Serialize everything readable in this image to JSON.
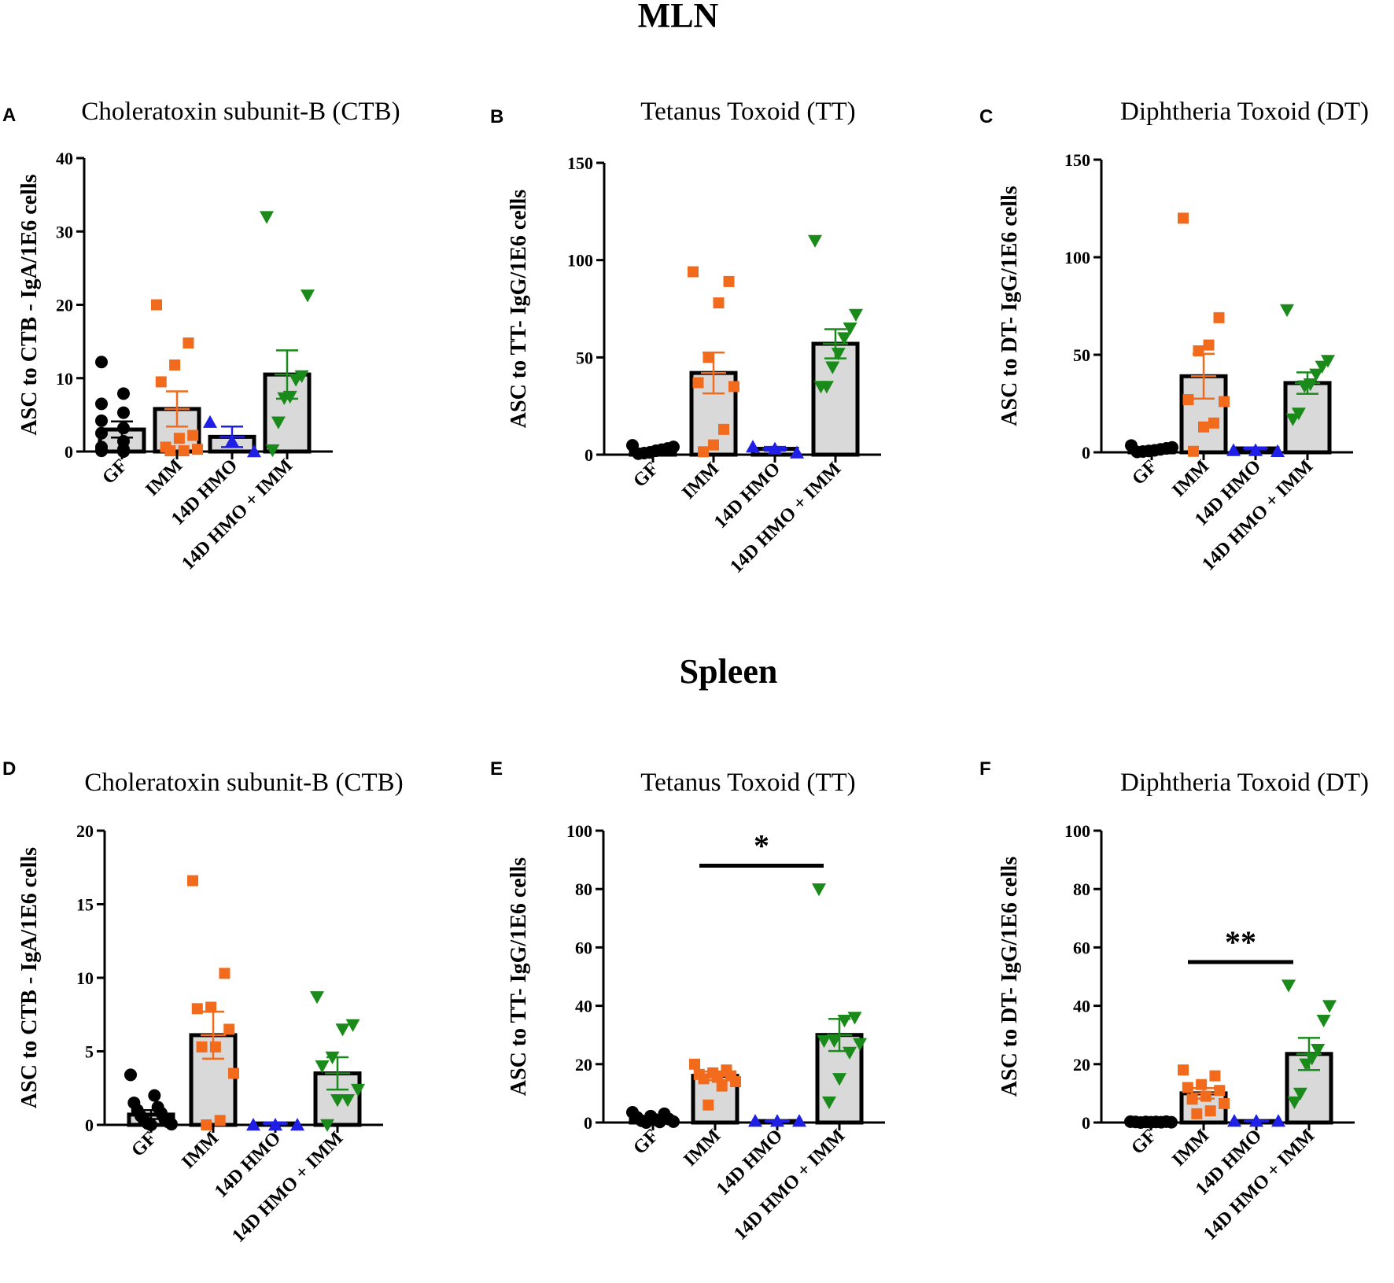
{
  "section_titles": {
    "top": "MLN",
    "bottom": "Spleen"
  },
  "colors": {
    "GF": "#000000",
    "IMM": "#f26b1d",
    "14D HMO": "#1f1fe6",
    "14D HMO + IMM": "#1a8a1a",
    "bar_fill": "#d9d9d9",
    "axis": "#000000"
  },
  "chart_data": [
    {
      "type": "bar",
      "panel": "A",
      "title": "Choleratoxin subunit-B  (CTB)",
      "ylabel": "ASC to CTB - IgA/1E6 cells",
      "xlabel": "",
      "ylim": [
        0,
        40
      ],
      "yticks": [
        0,
        10,
        20,
        30,
        40
      ],
      "categories": [
        "GF",
        "IMM",
        "14D HMO",
        "14D HMO + IMM"
      ],
      "means": [
        3.0,
        5.8,
        2.0,
        10.5
      ],
      "sem": [
        1.1,
        2.4,
        1.4,
        3.3
      ],
      "points": [
        [
          12.2,
          7.9,
          6.5,
          5.3,
          4.2,
          3.2,
          2.5,
          1.4,
          0.6,
          0.3,
          0.2,
          0.1,
          0.1,
          0.0
        ],
        [
          20.0,
          14.8,
          11.8,
          9.5,
          2.2,
          1.8,
          0.6,
          0.3,
          0.1,
          0.1
        ],
        [
          4.0,
          1.4,
          0.0
        ],
        [
          32.0,
          21.3,
          10.3,
          9.8,
          7.5,
          7.3,
          4.0,
          0.2
        ]
      ],
      "markers": [
        "circle",
        "square",
        "triangle-up",
        "triangle-down"
      ]
    },
    {
      "type": "bar",
      "panel": "B",
      "title": "Tetanus Toxoid  (TT)",
      "ylabel": "ASC to TT- IgG/1E6 cells",
      "xlabel": "",
      "ylim": [
        0,
        150
      ],
      "yticks": [
        0,
        50,
        100,
        150
      ],
      "categories": [
        "GF",
        "IMM",
        "14D HMO",
        "14D HMO + IMM"
      ],
      "means": [
        2.0,
        42.0,
        3.0,
        57.0
      ],
      "sem": [
        0.6,
        10.5,
        1.0,
        7.5
      ],
      "points": [
        [
          4.8,
          4.0,
          3.2,
          2.6,
          2.0,
          1.2,
          0.8,
          0.5
        ],
        [
          94.0,
          89.0,
          78.0,
          50.0,
          37.0,
          35.0,
          13.0,
          5.0,
          1.5
        ],
        [
          4.0,
          3.0,
          1.0
        ],
        [
          110.0,
          72.0,
          65.0,
          60.0,
          52.0,
          45.0,
          35.0,
          35.0
        ]
      ],
      "markers": [
        "circle",
        "square",
        "triangle-up",
        "triangle-down"
      ]
    },
    {
      "type": "bar",
      "panel": "C",
      "title": "Diphtheria Toxoid (DT)",
      "ylabel": "ASC to DT- IgG/1E6 cells",
      "xlabel": "",
      "ylim": [
        0,
        150
      ],
      "yticks": [
        0,
        50,
        100,
        150
      ],
      "categories": [
        "GF",
        "IMM",
        "14D HMO",
        "14D HMO + IMM"
      ],
      "means": [
        1.0,
        39.0,
        2.0,
        35.5
      ],
      "sem": [
        0.4,
        11.5,
        0.5,
        5.5
      ],
      "points": [
        [
          3.5,
          2.5,
          2.0,
          1.5,
          1.0,
          0.7,
          0.4,
          0.2
        ],
        [
          120.0,
          69.0,
          55.0,
          52.0,
          27.0,
          26.0,
          15.0,
          13.0,
          0.5
        ],
        [
          1.0,
          1.0,
          0.5
        ],
        [
          73.0,
          47.0,
          44.0,
          40.0,
          35.0,
          34.0,
          20.0,
          17.0
        ]
      ],
      "markers": [
        "circle",
        "square",
        "triangle-up",
        "triangle-down"
      ]
    },
    {
      "type": "bar",
      "panel": "D",
      "title": "Choleratoxin subunit-B  (CTB)",
      "ylabel": "ASC to CTB - IgA/1E6 cells",
      "xlabel": "",
      "ylim": [
        0,
        20
      ],
      "yticks": [
        0,
        5,
        10,
        15,
        20
      ],
      "categories": [
        "GF",
        "IMM",
        "14D HMO",
        "14D HMO + IMM"
      ],
      "means": [
        0.7,
        6.1,
        0.1,
        3.5
      ],
      "sem": [
        0.3,
        1.6,
        0.05,
        1.1
      ],
      "points": [
        [
          3.4,
          2.0,
          1.5,
          1.2,
          1.0,
          0.8,
          0.6,
          0.4,
          0.3,
          0.2,
          0.1,
          0.05,
          0.0
        ],
        [
          16.6,
          10.3,
          8.0,
          7.9,
          6.5,
          5.3,
          5.3,
          3.5,
          0.3,
          0.0
        ],
        [
          0.0,
          0.0,
          0.0
        ],
        [
          8.7,
          6.8,
          6.5,
          4.6,
          4.0,
          2.4,
          1.7,
          1.7,
          0.0
        ]
      ],
      "markers": [
        "circle",
        "square",
        "triangle-up",
        "triangle-down"
      ]
    },
    {
      "type": "bar",
      "panel": "E",
      "title": "Tetanus Toxoid  (TT)",
      "ylabel": "ASC to TT- IgG/1E6 cells",
      "xlabel": "",
      "ylim": [
        0,
        100
      ],
      "yticks": [
        0,
        20,
        40,
        60,
        80,
        100
      ],
      "categories": [
        "GF",
        "IMM",
        "14D HMO",
        "14D HMO + IMM"
      ],
      "means": [
        1.0,
        16.0,
        0.5,
        30.0
      ],
      "sem": [
        0.4,
        1.5,
        0.2,
        5.5
      ],
      "points": [
        [
          3.5,
          3.0,
          2.2,
          1.8,
          1.2,
          1.0,
          0.6,
          0.3,
          0.2,
          0.0
        ],
        [
          20.0,
          18.0,
          17.0,
          16.5,
          16.0,
          15.5,
          15.0,
          14.0,
          12.5,
          6.0
        ],
        [
          0.5,
          0.5,
          0.5
        ],
        [
          80.0,
          36.0,
          35.0,
          28.0,
          28.0,
          27.0,
          24.0,
          15.0,
          7.0
        ]
      ],
      "markers": [
        "circle",
        "square",
        "triangle-up",
        "triangle-down"
      ],
      "significance": {
        "label": "*",
        "from": 1,
        "to": 3,
        "y": 88
      }
    },
    {
      "type": "bar",
      "panel": "F",
      "title": "Diphtheria Toxoid (DT)",
      "ylabel": "ASC to DT- IgG/1E6 cells",
      "xlabel": "",
      "ylim": [
        0,
        100
      ],
      "yticks": [
        0,
        20,
        40,
        60,
        80,
        100
      ],
      "categories": [
        "GF",
        "IMM",
        "14D HMO",
        "14D HMO + IMM"
      ],
      "means": [
        0.2,
        10.0,
        0.5,
        23.5
      ],
      "sem": [
        0.1,
        1.8,
        0.1,
        5.5
      ],
      "points": [
        [
          0.3,
          0.3,
          0.2,
          0.2,
          0.2,
          0.1,
          0.1,
          0.1,
          0.0
        ],
        [
          18.0,
          16.0,
          13.0,
          12.0,
          11.0,
          9.0,
          8.0,
          6.5,
          4.0,
          3.0
        ],
        [
          0.5,
          0.5,
          0.5
        ],
        [
          47.0,
          40.0,
          35.0,
          25.0,
          22.0,
          20.0,
          10.0,
          7.0
        ]
      ],
      "markers": [
        "circle",
        "square",
        "triangle-up",
        "triangle-down"
      ],
      "significance": {
        "label": "**",
        "from": 1,
        "to": 3,
        "y": 55
      }
    }
  ]
}
